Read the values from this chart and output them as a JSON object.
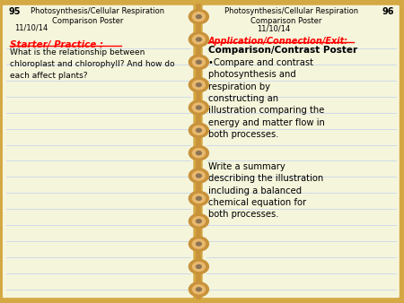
{
  "bg_color": "#D4A843",
  "paper_color": "#F5F5DC",
  "line_color": "#C8D8E8",
  "left_page_num": "95",
  "right_page_num": "96",
  "title_line1": "Photosynthesis/Cellular Respiration",
  "title_line2": "Comparison Poster",
  "date": "11/10/14",
  "left_header_red": "Starter/ Practice :",
  "left_body": "What is the relationship between\nchloroplast and chlorophyll? And how do\neach affect plants?",
  "right_header_red": "Application/Connection/Exit:",
  "right_bold": "Comparison/Contrast Poster",
  "right_bullet": "•Compare and contrast\nphotosynthesis and\nrespiration by\nconstructing an\nillustration comparing the\nenergy and matter flow in\nboth processes.",
  "right_body2": "Write a summary\ndescribing the illustration\nincluding a balanced\nchemical equation for\nboth processes.",
  "spiral_color": "#C8923A",
  "spiral_inner": "#E8B86D",
  "spiral_hole": "#8B7355",
  "num_spirals": 13
}
